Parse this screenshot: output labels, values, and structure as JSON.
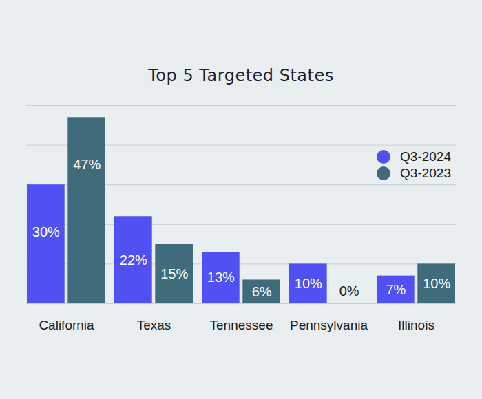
{
  "chart_data": {
    "type": "bar",
    "title": "Top 5 Targeted States",
    "categories": [
      "California",
      "Texas",
      "Tennessee",
      "Pennsylvania",
      "Illinois"
    ],
    "series": [
      {
        "name": "Q3-2024",
        "color": "#5150f2",
        "values": [
          30,
          22,
          13,
          10,
          7
        ],
        "value_labels": [
          "30%",
          "22%",
          "13%",
          "10%",
          "7%"
        ]
      },
      {
        "name": "Q3-2023",
        "color": "#3f6b7b",
        "values": [
          47,
          15,
          6,
          0,
          10
        ],
        "value_labels": [
          "47%",
          "15%",
          "6%",
          "0%",
          "10%"
        ]
      }
    ],
    "ylim": [
      0,
      50
    ],
    "yticks": [
      0,
      10,
      20,
      30,
      40,
      50
    ],
    "grid": true,
    "legend": "top-right",
    "data_labels": true,
    "tick_labels": "x"
  }
}
